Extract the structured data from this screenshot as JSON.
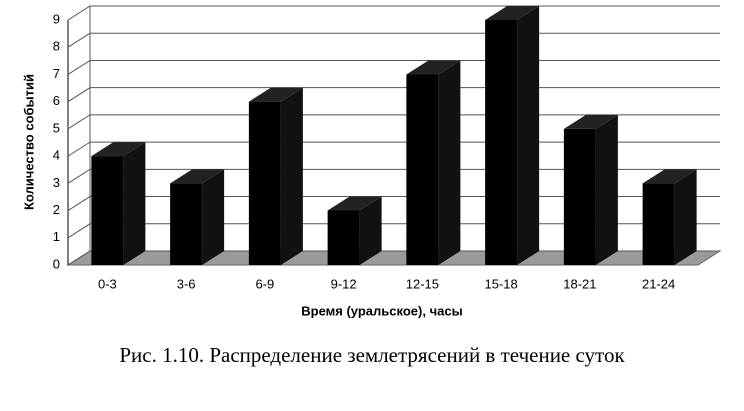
{
  "chart_data": {
    "type": "bar3d",
    "x_label": "Время (уральское), часы",
    "y_label": "Количество событий",
    "caption": "Рис. 1.10.  Распределение землетрясений в течение суток",
    "categories": [
      "0-3",
      "3-6",
      "6-9",
      "9-12",
      "12-15",
      "15-18",
      "18-21",
      "21-24"
    ],
    "values": [
      4,
      3,
      6,
      2,
      7,
      9,
      5,
      3
    ],
    "color": "#000000",
    "ylim": [
      0,
      9
    ],
    "yticks": [
      0,
      1,
      2,
      3,
      4,
      5,
      6,
      7,
      8,
      9
    ],
    "grid": true
  }
}
